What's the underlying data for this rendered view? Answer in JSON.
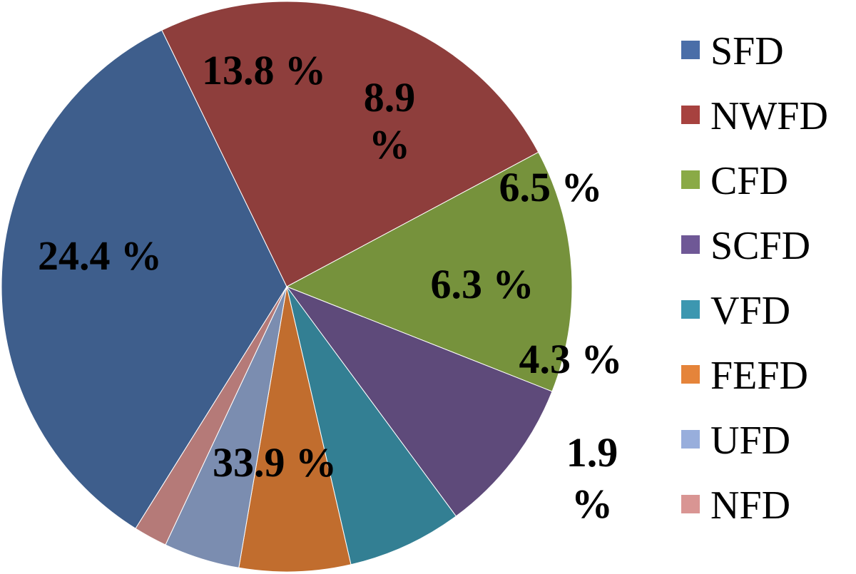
{
  "chart_data": {
    "type": "pie",
    "title": "",
    "categories": [
      "SFD",
      "NWFD",
      "CFD",
      "SCFD",
      "VFD",
      "FEFD",
      "UFD",
      "NFD"
    ],
    "values": [
      33.9,
      24.4,
      13.8,
      8.9,
      6.5,
      6.3,
      4.3,
      1.9
    ],
    "data_labels": [
      "33.9 %",
      "24.4 %",
      "13.8 %",
      "8.9 %",
      "6.5 %",
      "6.3 %",
      "4.3 %",
      "1.9 %"
    ],
    "colors": [
      "#3E5E8C",
      "#8E3E3C",
      "#76923C",
      "#5E4A7A",
      "#337F93",
      "#C16D2E",
      "#7B8DB0",
      "#B57A78"
    ],
    "legend": {
      "position": "right",
      "entries": [
        "SFD",
        "NWFD",
        "CFD",
        "SCFD",
        "VFD",
        "FEFD",
        "UFD",
        "NFD"
      ],
      "colors": [
        "#4A6EA8",
        "#A7423F",
        "#8AAA46",
        "#6F5896",
        "#3C97B0",
        "#E5843A",
        "#98AEDC",
        "#D99593"
      ]
    }
  }
}
